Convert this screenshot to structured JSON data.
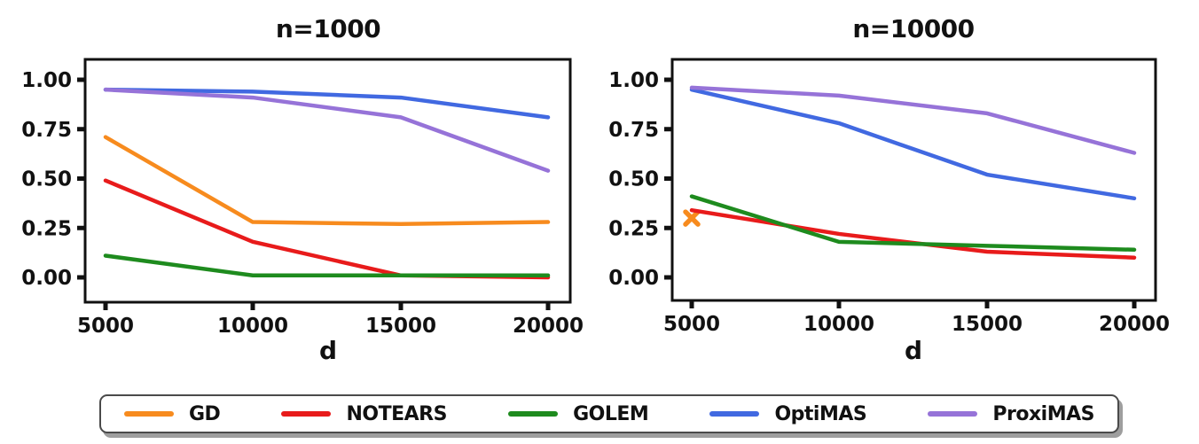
{
  "figure": {
    "background": "#ffffff"
  },
  "chart_data": [
    {
      "type": "line",
      "title": "n=1000",
      "xlabel": "d",
      "ylabel": "",
      "x": [
        5000,
        10000,
        15000,
        20000
      ],
      "xtick_labels": [
        "5000",
        "10000",
        "15000",
        "20000"
      ],
      "yticks": [
        0.0,
        0.25,
        0.5,
        0.75,
        1.0
      ],
      "ytick_labels": [
        "0.00",
        "0.25",
        "0.50",
        "0.75",
        "1.00"
      ],
      "ylim": [
        -0.12,
        1.1
      ],
      "grid": false,
      "series": [
        {
          "name": "GD",
          "color": "#f78b1e",
          "values": [
            0.71,
            0.28,
            0.27,
            0.28
          ]
        },
        {
          "name": "NOTEARS",
          "color": "#e81b1b",
          "values": [
            0.49,
            0.18,
            0.01,
            0.0
          ]
        },
        {
          "name": "GOLEM",
          "color": "#1e8b1e",
          "values": [
            0.11,
            0.01,
            0.01,
            0.01
          ]
        },
        {
          "name": "OptiMAS",
          "color": "#4169e1",
          "values": [
            0.95,
            0.94,
            0.91,
            0.81
          ]
        },
        {
          "name": "ProxiMAS",
          "color": "#9673d8",
          "values": [
            0.95,
            0.91,
            0.81,
            0.54
          ]
        }
      ]
    },
    {
      "type": "line",
      "title": "n=10000",
      "xlabel": "d",
      "ylabel": "",
      "x": [
        5000,
        10000,
        15000,
        20000
      ],
      "xtick_labels": [
        "5000",
        "10000",
        "15000",
        "20000"
      ],
      "yticks": [
        0.0,
        0.25,
        0.5,
        0.75,
        1.0
      ],
      "ytick_labels": [
        "0.00",
        "0.25",
        "0.50",
        "0.75",
        "1.00"
      ],
      "ylim": [
        -0.12,
        1.1
      ],
      "grid": false,
      "series": [
        {
          "name": "GD",
          "color": "#f78b1e",
          "values": [
            0.3,
            null,
            null,
            null
          ],
          "marker": "x",
          "line": false
        },
        {
          "name": "NOTEARS",
          "color": "#e81b1b",
          "values": [
            0.34,
            0.22,
            0.13,
            0.1
          ]
        },
        {
          "name": "GOLEM",
          "color": "#1e8b1e",
          "values": [
            0.41,
            0.18,
            0.16,
            0.14
          ]
        },
        {
          "name": "OptiMAS",
          "color": "#4169e1",
          "values": [
            0.95,
            0.78,
            0.52,
            0.4
          ]
        },
        {
          "name": "ProxiMAS",
          "color": "#9673d8",
          "values": [
            0.96,
            0.92,
            0.83,
            0.63
          ]
        }
      ]
    }
  ],
  "legend": {
    "position": "bottom",
    "items": [
      {
        "label": "GD",
        "color": "#f78b1e"
      },
      {
        "label": "NOTEARS",
        "color": "#e81b1b"
      },
      {
        "label": "GOLEM",
        "color": "#1e8b1e"
      },
      {
        "label": "OptiMAS",
        "color": "#4169e1"
      },
      {
        "label": "ProxiMAS",
        "color": "#9673d8"
      }
    ]
  }
}
